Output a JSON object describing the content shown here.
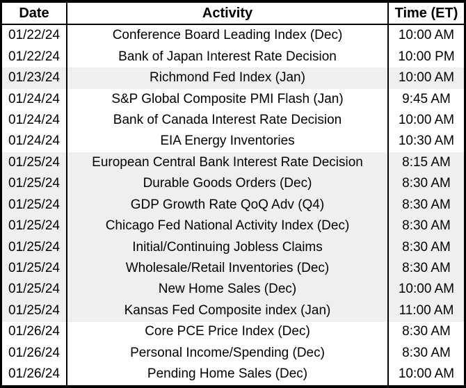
{
  "table": {
    "columns": [
      "Date",
      "Activity",
      "Time (ET)"
    ],
    "rows": [
      {
        "date": "01/22/24",
        "activity": "Conference Board Leading Index (Dec)",
        "time": "10:00 AM"
      },
      {
        "date": "01/22/24",
        "activity": "Bank of Japan Interest Rate Decision",
        "time": "10:00 PM"
      },
      {
        "date": "01/23/24",
        "activity": "Richmond Fed Index (Jan)",
        "time": "10:00 AM"
      },
      {
        "date": "01/24/24",
        "activity": "S&P Global Composite PMI Flash (Jan)",
        "time": "9:45 AM"
      },
      {
        "date": "01/24/24",
        "activity": "Bank of Canada Interest Rate Decision",
        "time": "10:00 AM"
      },
      {
        "date": "01/24/24",
        "activity": "EIA Energy Inventories",
        "time": "10:30 AM"
      },
      {
        "date": "01/25/24",
        "activity": "European Central Bank Interest Rate Decision",
        "time": "8:15 AM"
      },
      {
        "date": "01/25/24",
        "activity": "Durable Goods Orders (Dec)",
        "time": "8:30 AM"
      },
      {
        "date": "01/25/24",
        "activity": "GDP Growth Rate QoQ Adv (Q4)",
        "time": "8:30 AM"
      },
      {
        "date": "01/25/24",
        "activity": "Chicago Fed National Activity Index (Dec)",
        "time": "8:30 AM"
      },
      {
        "date": "01/25/24",
        "activity": "Initial/Continuing Jobless Claims",
        "time": "8:30 AM"
      },
      {
        "date": "01/25/24",
        "activity": "Wholesale/Retail Inventories (Dec)",
        "time": "8:30 AM"
      },
      {
        "date": "01/25/24",
        "activity": "New Home Sales (Dec)",
        "time": "10:00 AM"
      },
      {
        "date": "01/25/24",
        "activity": "Kansas Fed Composite index (Jan)",
        "time": "11:00 AM"
      },
      {
        "date": "01/26/24",
        "activity": "Core PCE Price Index (Dec)",
        "time": "8:30 AM"
      },
      {
        "date": "01/26/24",
        "activity": "Personal Income/Spending (Dec)",
        "time": "8:30 AM"
      },
      {
        "date": "01/26/24",
        "activity": "Pending Home Sales (Dec)",
        "time": "10:00 AM"
      }
    ]
  },
  "colors": {
    "border": "#000000",
    "shaded_row_bg": "#efefef",
    "row_bg": "#ffffff",
    "text": "#000000"
  }
}
